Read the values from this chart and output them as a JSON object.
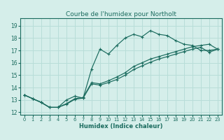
{
  "title": "Courbe de l'humidex pour Northolt",
  "xlabel": "Humidex (Indice chaleur)",
  "bg_color": "#d5eeea",
  "grid_color": "#b8ddd8",
  "line_color": "#1a6b5e",
  "xlim": [
    -0.5,
    23.5
  ],
  "ylim": [
    11.8,
    19.6
  ],
  "xticks": [
    0,
    1,
    2,
    3,
    4,
    5,
    6,
    7,
    8,
    9,
    10,
    11,
    12,
    13,
    14,
    15,
    16,
    17,
    18,
    19,
    20,
    21,
    22,
    23
  ],
  "yticks": [
    12,
    13,
    14,
    15,
    16,
    17,
    18,
    19
  ],
  "line1_x": [
    0,
    1,
    2,
    3,
    4,
    5,
    6,
    7,
    8,
    9,
    10,
    11,
    12,
    13,
    14,
    15,
    16,
    17,
    18,
    19,
    20,
    21,
    22,
    23
  ],
  "line1_y": [
    13.4,
    13.1,
    12.8,
    12.4,
    12.4,
    13.0,
    13.3,
    13.15,
    15.5,
    17.1,
    16.7,
    17.4,
    18.0,
    18.3,
    18.1,
    18.6,
    18.3,
    18.2,
    17.8,
    17.5,
    17.4,
    17.0,
    17.0,
    17.1
  ],
  "line2_x": [
    0,
    1,
    2,
    3,
    4,
    5,
    6,
    7,
    8,
    9,
    10,
    11,
    12,
    13,
    14,
    15,
    16,
    17,
    18,
    19,
    20,
    21,
    22,
    23
  ],
  "line2_y": [
    13.4,
    13.1,
    12.8,
    12.4,
    12.4,
    12.7,
    13.1,
    13.2,
    14.4,
    14.3,
    14.55,
    14.85,
    15.2,
    15.7,
    16.0,
    16.3,
    16.5,
    16.7,
    16.9,
    17.1,
    17.3,
    17.4,
    17.5,
    17.1
  ],
  "line3_x": [
    0,
    1,
    2,
    3,
    4,
    5,
    6,
    7,
    8,
    9,
    10,
    11,
    12,
    13,
    14,
    15,
    16,
    17,
    18,
    19,
    20,
    21,
    22,
    23
  ],
  "line3_y": [
    13.4,
    13.1,
    12.8,
    12.4,
    12.4,
    12.65,
    13.05,
    13.15,
    14.3,
    14.2,
    14.4,
    14.65,
    15.0,
    15.45,
    15.75,
    16.05,
    16.3,
    16.5,
    16.7,
    16.9,
    17.1,
    17.25,
    16.85,
    17.1
  ]
}
